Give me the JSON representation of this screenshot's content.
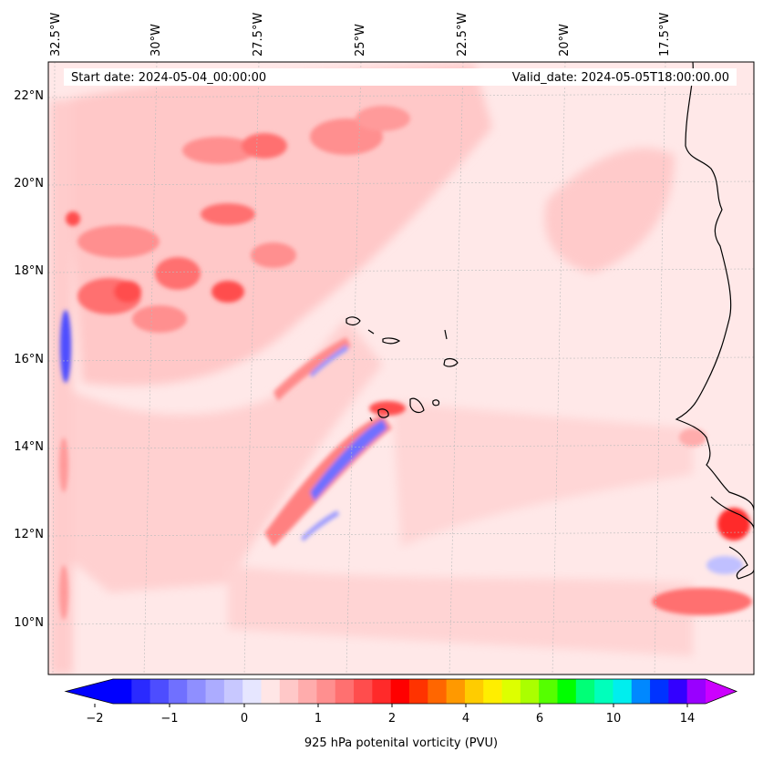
{
  "header": {
    "start_date": "Start date: 2024-05-04_00:00:00",
    "valid_date": "Valid_date: 2024-05-05T18:00:00.00"
  },
  "map": {
    "lon_labels": [
      "32.5°W",
      "30°W",
      "27.5°W",
      "25°W",
      "22.5°W",
      "20°W",
      "17.5°W"
    ],
    "lat_labels": [
      "22°N",
      "20°N",
      "18°N",
      "16°N",
      "14°N",
      "12°N",
      "10°N"
    ],
    "gridlines": "dashed",
    "background_field": "#ffe6e6"
  },
  "colorbar": {
    "label": "925 hPa potenital vorticity (PVU)",
    "ticks": [
      "−2",
      "−1",
      "0",
      "1",
      "2",
      "4",
      "6",
      "10",
      "14"
    ],
    "colors": [
      "#0000ff",
      "#2a2aff",
      "#4d4dff",
      "#7070ff",
      "#8f8fff",
      "#acacff",
      "#c8c8ff",
      "#e6e6ff",
      "#ffe6e6",
      "#ffc8c8",
      "#ffacac",
      "#ff8f8f",
      "#ff7070",
      "#ff4d4d",
      "#ff2a2a",
      "#ff0000",
      "#ff3300",
      "#ff6600",
      "#ff9900",
      "#ffcc00",
      "#ffee00",
      "#ddff00",
      "#aaff00",
      "#55ff00",
      "#00ff00",
      "#00ff77",
      "#00ffbb",
      "#00eeee",
      "#0088ff",
      "#0033ff",
      "#3300ff",
      "#9900ff"
    ],
    "low_extend_color": "#0000ff",
    "high_extend_color": "#cc00ff"
  }
}
